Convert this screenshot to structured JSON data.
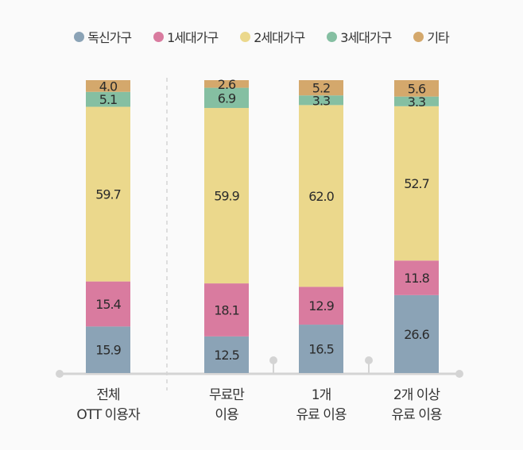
{
  "chart_data": {
    "type": "bar",
    "stacked": true,
    "categories": [
      "전체\nOTT 이용자",
      "무료만\n이용",
      "1개\n유료 이용",
      "2개 이상\n유료 이용"
    ],
    "category_lines": [
      [
        "전체",
        "OTT 이용자"
      ],
      [
        "무료만",
        "이용"
      ],
      [
        "1개",
        "유료 이용"
      ],
      [
        "2개 이상",
        "유료 이용"
      ]
    ],
    "series": [
      {
        "name": "독신가구",
        "color": "#8ba3b6",
        "values": [
          15.9,
          12.5,
          16.5,
          26.6
        ]
      },
      {
        "name": "1세대가구",
        "color": "#d97b9f",
        "values": [
          15.4,
          18.1,
          12.9,
          11.8
        ]
      },
      {
        "name": "2세대가구",
        "color": "#ebd88c",
        "values": [
          59.7,
          59.9,
          62.0,
          52.7
        ]
      },
      {
        "name": "3세대가구",
        "color": "#85bfa2",
        "values": [
          5.1,
          6.9,
          3.3,
          3.3
        ]
      },
      {
        "name": "기타",
        "color": "#d4a86c",
        "values": [
          4.0,
          2.6,
          5.2,
          5.6
        ]
      }
    ],
    "ylim": [
      0,
      100
    ],
    "legend": "top",
    "grid": false
  }
}
